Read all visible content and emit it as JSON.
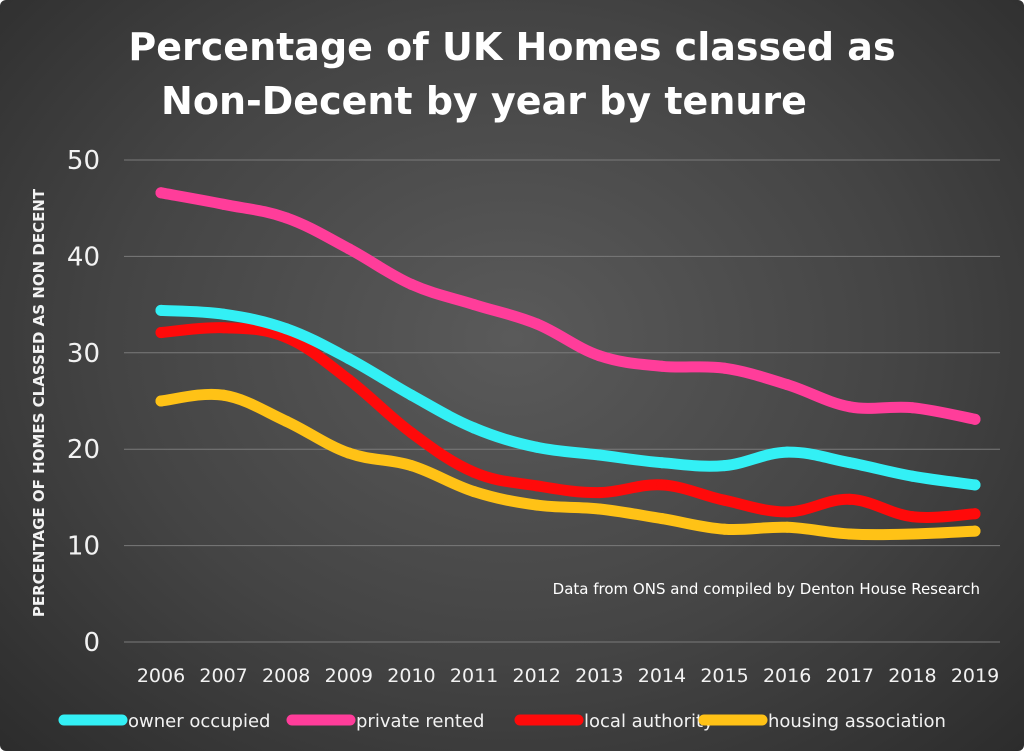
{
  "chart_data": {
    "type": "line",
    "title_line1": "Percentage of UK Homes classed as",
    "title_line2": "Non-Decent by year by tenure",
    "ylabel": "PERCENTAGE OF HOMES  CLASSED AS NON DECENT",
    "xlabel": "",
    "annotation": "Data from ONS and compiled by Denton House Research",
    "ylim": [
      0,
      50
    ],
    "yticks": [
      "0",
      "10",
      "20",
      "30",
      "40",
      "50"
    ],
    "x": [
      "2006",
      "2007",
      "2008",
      "2009",
      "2010",
      "2011",
      "2012",
      "2013",
      "2014",
      "2015",
      "2016",
      "2017",
      "2018",
      "2019"
    ],
    "grid": true,
    "legend_position": "bottom",
    "series": [
      {
        "name": "owner occupied",
        "color": "#33f0f5",
        "values": [
          34.4,
          34.0,
          32.5,
          29.4,
          25.6,
          22.2,
          20.2,
          19.4,
          18.6,
          18.3,
          19.7,
          18.6,
          17.2,
          16.3
        ]
      },
      {
        "name": "private rented",
        "color": "#ff3d9a",
        "values": [
          46.6,
          45.4,
          44.0,
          40.8,
          37.1,
          35.0,
          33.0,
          29.7,
          28.6,
          28.4,
          26.7,
          24.4,
          24.3,
          23.1
        ]
      },
      {
        "name": "local authority",
        "color": "#ff0a0a",
        "values": [
          32.1,
          32.6,
          31.6,
          27.2,
          21.7,
          17.6,
          16.2,
          15.5,
          16.3,
          14.7,
          13.5,
          14.8,
          13.0,
          13.3
        ]
      },
      {
        "name": "housing association",
        "color": "#ffc216",
        "values": [
          25.0,
          25.6,
          22.9,
          19.6,
          18.3,
          15.6,
          14.2,
          13.8,
          12.8,
          11.7,
          11.9,
          11.2,
          11.2,
          11.5
        ]
      }
    ]
  }
}
